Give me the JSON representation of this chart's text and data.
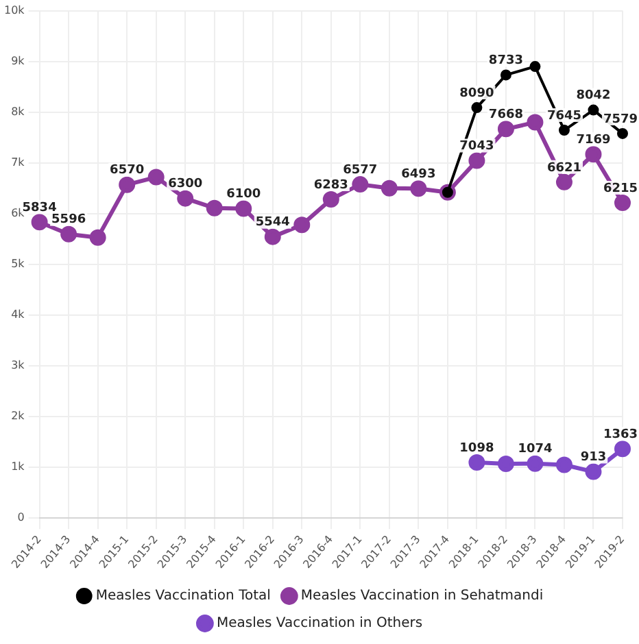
{
  "chart_data": {
    "type": "line",
    "categories": [
      "2014-2",
      "2014-3",
      "2014-4",
      "2015-1",
      "2015-2",
      "2015-3",
      "2015-4",
      "2016-1",
      "2016-2",
      "2016-3",
      "2016-4",
      "2017-1",
      "2017-2",
      "2017-3",
      "2017-4",
      "2018-1",
      "2018-2",
      "2018-3",
      "2018-4",
      "2019-1",
      "2019-2"
    ],
    "series": [
      {
        "name": "Measles Vaccination Total",
        "color": "#000000",
        "values": [
          null,
          null,
          null,
          null,
          null,
          null,
          null,
          null,
          null,
          null,
          null,
          null,
          null,
          null,
          6420,
          8090,
          8733,
          8900,
          7645,
          8042,
          7579
        ],
        "value_labels": [
          null,
          null,
          null,
          null,
          null,
          null,
          null,
          null,
          null,
          null,
          null,
          null,
          null,
          null,
          null,
          "8090",
          "8733",
          null,
          "7645",
          "8042",
          "7579"
        ]
      },
      {
        "name": "Measles Vaccination in Sehatmandi",
        "color": "#8e3b9e",
        "values": [
          5834,
          5596,
          5530,
          6570,
          6720,
          6300,
          6110,
          6100,
          5544,
          5780,
          6283,
          6577,
          6500,
          6493,
          6420,
          7043,
          7668,
          7800,
          6621,
          7169,
          6215
        ],
        "value_labels": [
          "5834",
          "5596",
          null,
          "6570",
          null,
          "6300",
          null,
          "6100",
          "5544",
          null,
          "6283",
          "6577",
          null,
          "6493",
          null,
          "7043",
          "7668",
          null,
          "6621",
          "7169",
          "6215"
        ]
      },
      {
        "name": "Measles Vaccination in Others",
        "color": "#7e48c8",
        "values": [
          null,
          null,
          null,
          null,
          null,
          null,
          null,
          null,
          null,
          null,
          null,
          null,
          null,
          null,
          null,
          1098,
          1070,
          1074,
          1050,
          913,
          1363
        ],
        "value_labels": [
          null,
          null,
          null,
          null,
          null,
          null,
          null,
          null,
          null,
          null,
          null,
          null,
          null,
          null,
          null,
          "1098",
          null,
          "1074",
          null,
          "913",
          "1363"
        ]
      }
    ],
    "ylim": [
      0,
      10000
    ],
    "yticks": [
      0,
      {
        "value": 1000,
        "label": "1k"
      },
      {
        "value": 2000,
        "label": "2k"
      },
      {
        "value": 3000,
        "label": "3k"
      },
      {
        "value": 4000,
        "label": "4k"
      },
      {
        "value": 5000,
        "label": "5k"
      },
      {
        "value": 6000,
        "label": "6k"
      },
      {
        "value": 7000,
        "label": "7k"
      },
      {
        "value": 8000,
        "label": "8k"
      },
      {
        "value": 9000,
        "label": "9k"
      },
      {
        "value": 10000,
        "label": "10k"
      }
    ],
    "grid": true,
    "legend": "bottom",
    "marker": "circle",
    "line_style": "solid"
  }
}
